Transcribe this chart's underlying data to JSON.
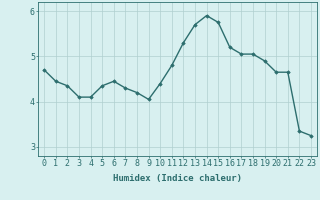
{
  "x": [
    0,
    1,
    2,
    3,
    4,
    5,
    6,
    7,
    8,
    9,
    10,
    11,
    12,
    13,
    14,
    15,
    16,
    17,
    18,
    19,
    20,
    21,
    22,
    23
  ],
  "y": [
    4.7,
    4.45,
    4.35,
    4.1,
    4.1,
    4.35,
    4.45,
    4.3,
    4.2,
    4.05,
    4.4,
    4.8,
    5.3,
    5.7,
    5.9,
    5.75,
    5.2,
    5.05,
    5.05,
    4.9,
    4.65,
    4.65,
    3.35,
    3.25
  ],
  "line_color": "#2d6e6e",
  "marker": "D",
  "marker_size": 1.8,
  "bg_color": "#d8f0f0",
  "grid_color": "#b0d0d0",
  "xlabel": "Humidex (Indice chaleur)",
  "ylim": [
    2.8,
    6.2
  ],
  "xlim": [
    -0.5,
    23.5
  ],
  "yticks": [
    3,
    4,
    5,
    6
  ],
  "xticks": [
    0,
    1,
    2,
    3,
    4,
    5,
    6,
    7,
    8,
    9,
    10,
    11,
    12,
    13,
    14,
    15,
    16,
    17,
    18,
    19,
    20,
    21,
    22,
    23
  ],
  "xlabel_fontsize": 6.5,
  "tick_fontsize": 6.0,
  "line_width": 1.0
}
